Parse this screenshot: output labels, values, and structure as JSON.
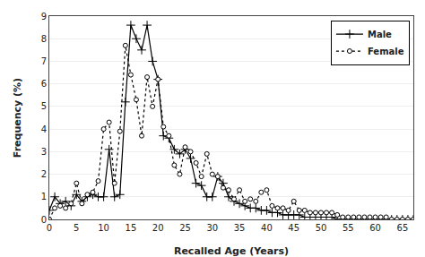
{
  "chart_data": {
    "type": "line",
    "x": [
      0,
      1,
      2,
      3,
      4,
      5,
      6,
      7,
      8,
      9,
      10,
      11,
      12,
      13,
      14,
      15,
      16,
      17,
      18,
      19,
      20,
      21,
      22,
      23,
      24,
      25,
      26,
      27,
      28,
      29,
      30,
      31,
      32,
      33,
      34,
      35,
      36,
      37,
      38,
      39,
      40,
      41,
      42,
      43,
      44,
      45,
      46,
      47,
      48,
      49,
      50,
      51,
      52,
      53,
      54,
      55,
      56,
      57,
      58,
      59,
      60,
      61,
      62,
      63,
      64,
      65,
      66,
      67
    ],
    "series": [
      {
        "name": "Male",
        "color": "#000000",
        "marker": "plus",
        "line_style": "solid",
        "values": [
          0.4,
          1.0,
          0.7,
          0.8,
          0.6,
          1.1,
          0.8,
          1.0,
          1.1,
          1.0,
          1.0,
          3.1,
          1.0,
          1.1,
          5.2,
          8.6,
          8.0,
          7.5,
          8.6,
          7.0,
          6.2,
          3.7,
          3.6,
          3.1,
          2.9,
          3.1,
          2.7,
          1.6,
          1.5,
          1.0,
          1.0,
          1.9,
          1.6,
          1.0,
          0.8,
          0.7,
          0.6,
          0.5,
          0.5,
          0.4,
          0.4,
          0.3,
          0.3,
          0.2,
          0.2,
          0.2,
          0.2,
          0.1,
          0.1,
          0.1,
          0.1,
          0.1,
          0.1,
          0.0,
          0.0,
          0.0,
          0.0,
          0.0,
          0.0,
          0.0,
          0.0,
          0.0,
          0.0,
          0.0,
          0.0,
          0.0,
          0.0,
          0.0
        ]
      },
      {
        "name": "Female",
        "color": "#000000",
        "marker": "circle",
        "line_style": "dotted",
        "values": [
          0.0,
          0.5,
          0.6,
          0.5,
          0.7,
          1.6,
          0.7,
          1.1,
          1.2,
          1.7,
          4.0,
          4.3,
          1.6,
          3.9,
          7.7,
          6.4,
          5.3,
          3.7,
          6.3,
          5.0,
          6.2,
          4.1,
          3.7,
          2.4,
          2.0,
          3.2,
          3.0,
          2.5,
          1.9,
          2.9,
          2.0,
          1.9,
          1.4,
          1.3,
          0.9,
          1.3,
          0.8,
          0.9,
          0.8,
          1.2,
          1.3,
          0.6,
          0.5,
          0.5,
          0.4,
          0.8,
          0.4,
          0.4,
          0.3,
          0.3,
          0.3,
          0.3,
          0.3,
          0.2,
          0.1,
          0.1,
          0.1,
          0.1,
          0.1,
          0.1,
          0.1,
          0.1,
          0.1,
          0.0,
          0.0,
          0.0,
          0.0,
          0.0
        ]
      }
    ],
    "xlabel": "Recalled Age (Years)",
    "ylabel": "Frequency (%)",
    "xlim": [
      0,
      67
    ],
    "ylim": [
      0,
      9
    ],
    "xticks": [
      0,
      5,
      10,
      15,
      20,
      25,
      30,
      35,
      40,
      45,
      50,
      55,
      60,
      65
    ],
    "yticks": [
      0,
      1,
      2,
      3,
      4,
      5,
      6,
      7,
      8,
      9
    ],
    "grid": "y",
    "legend": "upper right"
  }
}
